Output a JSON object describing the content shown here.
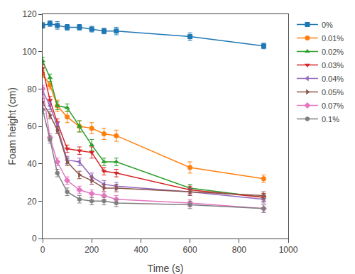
{
  "chart_data": {
    "type": "line",
    "xlabel": "Time (s)",
    "ylabel": "Foam height (cm)",
    "xlim": [
      0,
      1000
    ],
    "ylim": [
      0,
      120
    ],
    "xticks": [
      0,
      200,
      400,
      600,
      800,
      1000
    ],
    "yticks": [
      0,
      20,
      40,
      60,
      80,
      100,
      120
    ],
    "grid": false,
    "legend": "right",
    "series": [
      {
        "name": "0%",
        "marker": "square",
        "x": [
          0,
          30,
          60,
          100,
          150,
          200,
          250,
          300,
          600,
          900
        ],
        "values": [
          114,
          115,
          114,
          113,
          113,
          112,
          111,
          111,
          108,
          103
        ],
        "yerr": [
          1.5,
          1.5,
          2,
          1.5,
          1.5,
          1.5,
          1.5,
          2,
          2,
          1.5
        ]
      },
      {
        "name": "0.01%",
        "marker": "circle",
        "x": [
          0,
          30,
          60,
          100,
          150,
          200,
          250,
          300,
          600,
          900
        ],
        "values": [
          88,
          82,
          71,
          65,
          60,
          59,
          56,
          55,
          38,
          32
        ],
        "yerr": [
          2,
          2,
          3,
          3,
          3,
          3,
          3,
          3,
          3,
          2
        ]
      },
      {
        "name": "0.02%",
        "marker": "triangle-up",
        "x": [
          0,
          30,
          60,
          100,
          150,
          200,
          250,
          300,
          600,
          900
        ],
        "values": [
          95,
          86,
          71,
          70,
          60,
          50,
          41,
          41,
          27,
          22
        ],
        "yerr": [
          2,
          2,
          2,
          2,
          3,
          3,
          2,
          2,
          2,
          2
        ]
      },
      {
        "name": "0.03%",
        "marker": "triangle-down",
        "x": [
          0,
          30,
          60,
          100,
          150,
          200,
          250,
          300,
          600,
          900
        ],
        "values": [
          91,
          74,
          62,
          48,
          47,
          46,
          36,
          35,
          26,
          22
        ],
        "yerr": [
          2,
          2,
          2,
          2,
          2,
          3,
          2,
          2,
          2,
          2
        ]
      },
      {
        "name": "0.04%",
        "marker": "triangle-left",
        "x": [
          0,
          30,
          60,
          100,
          150,
          200,
          250,
          300,
          600,
          900
        ],
        "values": [
          79,
          71,
          60,
          42,
          41,
          33,
          29,
          28,
          25,
          21
        ],
        "yerr": [
          2,
          2,
          2,
          2,
          2,
          2,
          2,
          2,
          2,
          2
        ]
      },
      {
        "name": "0.05%",
        "marker": "triangle-right",
        "x": [
          0,
          30,
          60,
          100,
          150,
          200,
          250,
          300,
          600,
          900
        ],
        "values": [
          73,
          66,
          58,
          41,
          34,
          31,
          27,
          27,
          25,
          23
        ],
        "yerr": [
          2,
          2,
          2,
          2,
          2,
          2,
          2,
          2,
          2,
          2
        ]
      },
      {
        "name": "0.07%",
        "marker": "diamond",
        "x": [
          0,
          30,
          60,
          100,
          150,
          200,
          250,
          300,
          600,
          900
        ],
        "values": [
          80,
          54,
          41,
          31,
          26,
          24,
          23,
          21,
          19,
          16
        ],
        "yerr": [
          2,
          2,
          2,
          2,
          2,
          2,
          2,
          2,
          2,
          2
        ]
      },
      {
        "name": "0.1%",
        "marker": "hexagon",
        "x": [
          0,
          30,
          60,
          100,
          150,
          200,
          250,
          300,
          600,
          900
        ],
        "values": [
          69,
          53,
          35,
          25,
          21,
          20,
          20,
          19,
          18,
          16
        ],
        "yerr": [
          2,
          2,
          2,
          2,
          2,
          2,
          2,
          2,
          2,
          2
        ]
      }
    ]
  }
}
